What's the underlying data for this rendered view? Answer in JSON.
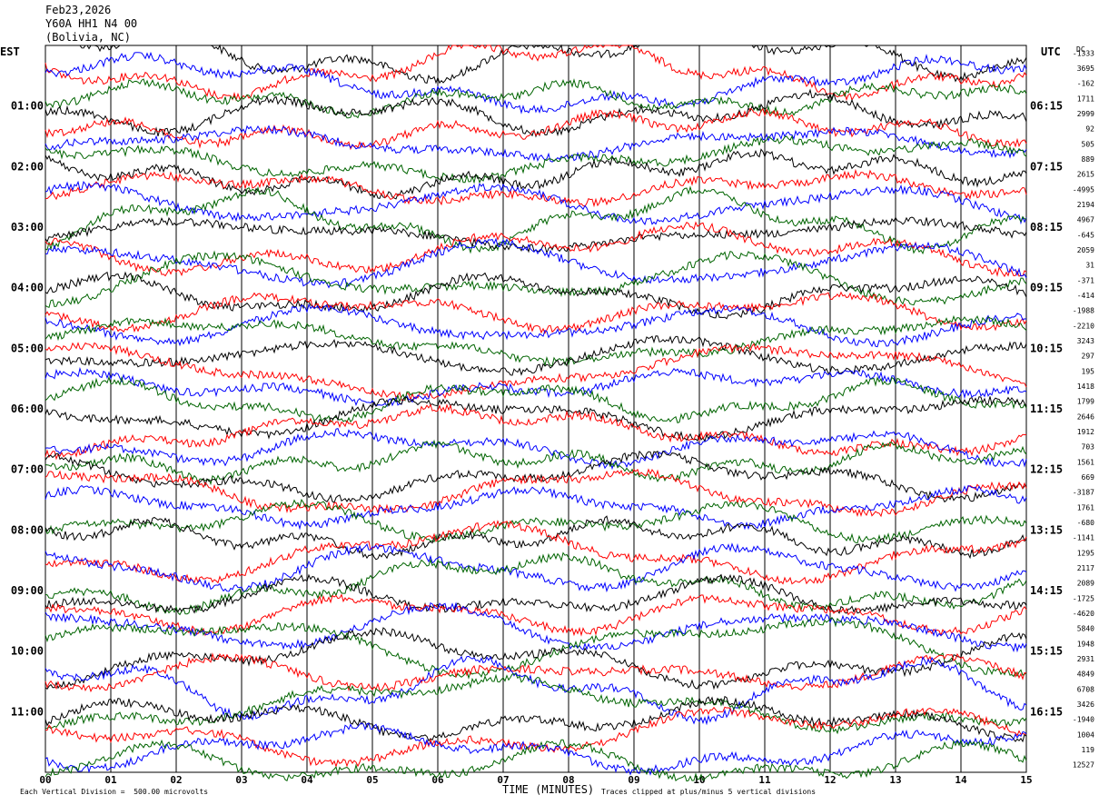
{
  "header": {
    "date": "Feb23,2026",
    "station": "Y60A HH1 N4 00",
    "location": "(Bolivia, NC)"
  },
  "left_zone_label": "EST",
  "right_zone_label": "UTC",
  "dc_label": "DC",
  "footer": {
    "scale_note": "Each Vertical Division =  500.00 microvolts",
    "xlabel": "TIME (MINUTES)",
    "clip_note": "Traces clipped at plus/minus 5 vertical divisions"
  },
  "colors": {
    "cycle": [
      "#000000",
      "#ff0000",
      "#0000ff",
      "#006400"
    ],
    "grid": "#000000"
  },
  "chart_data": {
    "type": "line",
    "xlabel": "TIME (MINUTES)",
    "xlim": [
      0,
      15
    ],
    "x_ticks": [
      "00",
      "01",
      "02",
      "03",
      "04",
      "05",
      "06",
      "07",
      "08",
      "09",
      "10",
      "11",
      "12",
      "13",
      "14",
      "15"
    ],
    "left_time_labels": [
      "01:00",
      "02:00",
      "03:00",
      "04:00",
      "05:00",
      "06:00",
      "07:00",
      "08:00",
      "09:00",
      "10:00",
      "11:00"
    ],
    "right_time_labels": [
      "06:15",
      "07:15",
      "08:15",
      "09:15",
      "10:15",
      "11:15",
      "12:15",
      "13:15",
      "14:15",
      "15:15",
      "16:15"
    ],
    "trace_count": 48,
    "dc_offsets": [
      "-1333",
      "3695",
      "-162",
      "1711",
      "2999",
      "92",
      "505",
      "889",
      "2615",
      "-4995",
      "2194",
      "4967",
      "-645",
      "2059",
      "31",
      "-371",
      "-414",
      "-1988",
      "-2210",
      "3243",
      "297",
      "195",
      "1418",
      "1799",
      "2646",
      "1912",
      "703",
      "1561",
      "669",
      "-3187",
      "1761",
      "-680",
      "-1141",
      "1295",
      "2117",
      "2089",
      "-1725",
      "-4620",
      "5840",
      "1948",
      "2931",
      "4849",
      "6708",
      "3426",
      "-1940",
      "1004",
      "119",
      "12527"
    ]
  }
}
